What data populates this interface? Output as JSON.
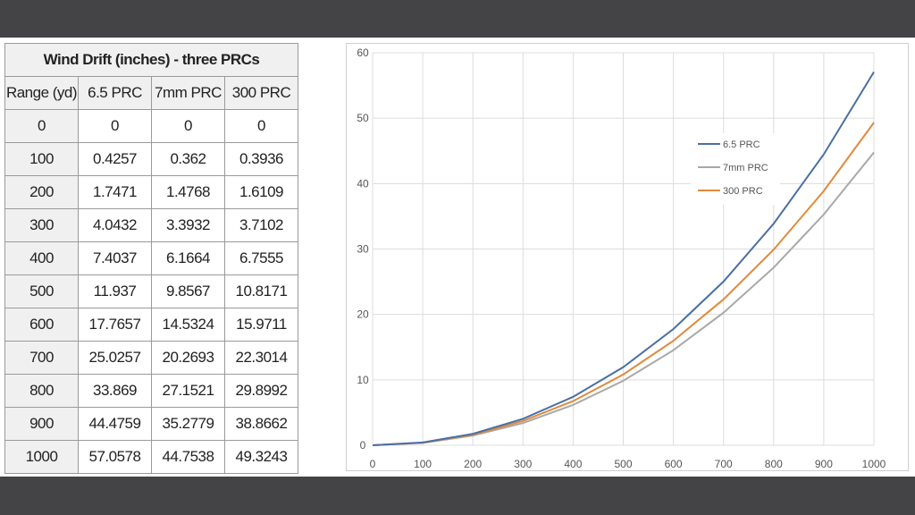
{
  "table": {
    "title": "Wind Drift (inches) - three PRCs",
    "headers": [
      "Range (yd)",
      "6.5 PRC",
      "7mm PRC",
      "300 PRC"
    ],
    "rows": [
      [
        "0",
        "0",
        "0",
        "0"
      ],
      [
        "100",
        "0.4257",
        "0.362",
        "0.3936"
      ],
      [
        "200",
        "1.7471",
        "1.4768",
        "1.6109"
      ],
      [
        "300",
        "4.0432",
        "3.3932",
        "3.7102"
      ],
      [
        "400",
        "7.4037",
        "6.1664",
        "6.7555"
      ],
      [
        "500",
        "11.937",
        "9.8567",
        "10.8171"
      ],
      [
        "600",
        "17.7657",
        "14.5324",
        "15.9711"
      ],
      [
        "700",
        "25.0257",
        "20.2693",
        "22.3014"
      ],
      [
        "800",
        "33.869",
        "27.1521",
        "29.8992"
      ],
      [
        "900",
        "44.4759",
        "35.2779",
        "38.8662"
      ],
      [
        "1000",
        "57.0578",
        "44.7538",
        "49.3243"
      ]
    ]
  },
  "chart_data": {
    "type": "line",
    "title": "",
    "xlabel": "",
    "ylabel": "",
    "x": [
      0,
      100,
      200,
      300,
      400,
      500,
      600,
      700,
      800,
      900,
      1000
    ],
    "xticks": [
      "0",
      "100",
      "200",
      "300",
      "400",
      "500",
      "600",
      "700",
      "800",
      "900",
      "1000"
    ],
    "yticks": [
      "0",
      "10",
      "20",
      "30",
      "40",
      "50",
      "60"
    ],
    "ylim": [
      0,
      60
    ],
    "xlim": [
      0,
      1000
    ],
    "grid": true,
    "legend_position": "upper-right-inside",
    "series": [
      {
        "name": "6.5 PRC",
        "color": "#4a6fa5",
        "values": [
          0,
          0.4257,
          1.7471,
          4.0432,
          7.4037,
          11.937,
          17.7657,
          25.0257,
          33.869,
          44.4759,
          57.0578
        ]
      },
      {
        "name": "7mm PRC",
        "color": "#a8a8a8",
        "values": [
          0,
          0.362,
          1.4768,
          3.3932,
          6.1664,
          9.8567,
          14.5324,
          20.2693,
          27.1521,
          35.2779,
          44.7538
        ]
      },
      {
        "name": "300 PRC",
        "color": "#e08a3c",
        "values": [
          0,
          0.3936,
          1.6109,
          3.7102,
          6.7555,
          10.8171,
          15.9711,
          22.3014,
          29.8992,
          38.8662,
          49.3243
        ]
      }
    ]
  }
}
